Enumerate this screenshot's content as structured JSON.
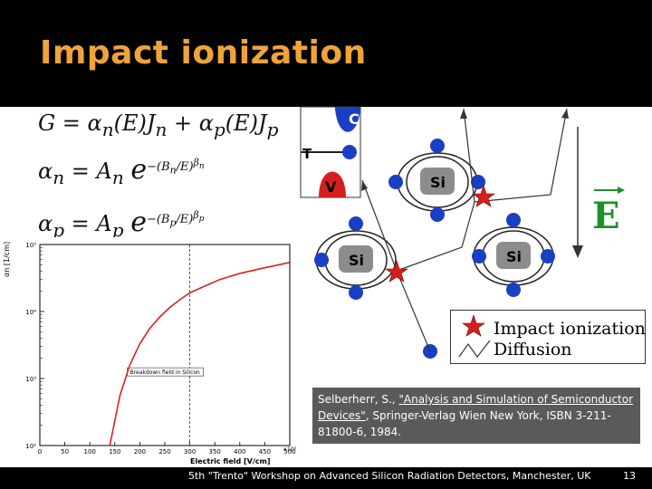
{
  "slide": {
    "title": "Impact ionization",
    "footer": "5th \"Trento\" Workshop on Advanced Silicon Radiation Detectors, Manchester, UK",
    "page_number": "13"
  },
  "equations": {
    "eq1": "G = αn(E)Jn + αp(E)Jp",
    "eq2": "αn = An e^-(Bn/E)^βn",
    "eq3": "αp = Ap e^-(Bp/E)^βp"
  },
  "chart_data": {
    "type": "line",
    "ylabel": "αn [1/cm]",
    "xlabel": "Electric field [V/cm]",
    "x_scale_label": "×10³",
    "y_scale": "log",
    "x_ticks": [
      "0",
      "50",
      "100",
      "150",
      "200",
      "250",
      "300",
      "350",
      "400",
      "450",
      "500"
    ],
    "y_ticks": [
      "10²",
      "10³",
      "10⁴",
      "10⁵"
    ],
    "annotation": "Breakdown field in Silicon",
    "breakdown_field": 300,
    "series": [
      {
        "color": "#e02020",
        "x": [
          140,
          160,
          180,
          200,
          220,
          240,
          260,
          280,
          300,
          330,
          360,
          400,
          450,
          500
        ],
        "y": [
          100,
          550,
          1600,
          3300,
          5600,
          8300,
          11500,
          15000,
          19000,
          24000,
          30000,
          37000,
          45000,
          54000
        ]
      }
    ]
  },
  "diagram": {
    "band_c_label": "C",
    "band_t_label": "T",
    "band_v_label": "V",
    "atom_label": "Si",
    "field_label": "E",
    "legend_impact": "Impact ionization",
    "legend_diffusion": "Diffusion"
  },
  "reference": {
    "author": "Selberherr, S., ",
    "link_text": "\"Analysis and Simulation of Semiconductor Devices\"",
    "details": ", Springer-Verlag Wien New York, ISBN 3-211-81800-6, 1984."
  }
}
